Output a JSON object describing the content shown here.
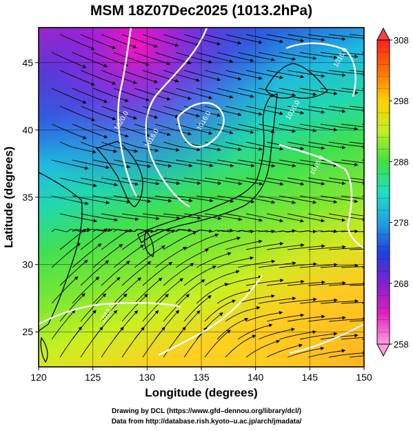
{
  "figure": {
    "title": "MSM 18Z07Dec2025 (1013.2hPa)",
    "xlabel": "Longitude (degrees)",
    "ylabel": "Latitude  (degrees)",
    "credits": [
      "Drawing by DCL (https://www.gfd–dennou.org/library/dcl/)",
      "Data from http://database.rish.kyoto–u.ac.jp/arch/jmadata/"
    ]
  },
  "map": {
    "lon_range": [
      120,
      150
    ],
    "lat_range": [
      22.4,
      47.6
    ],
    "x_ticks": [
      "120",
      "125",
      "130",
      "135",
      "140",
      "145",
      "150"
    ],
    "y_ticks": [
      "25",
      "30",
      "35",
      "40",
      "45"
    ],
    "grid": true
  },
  "colorbar": {
    "min": 258,
    "max": 308,
    "tick_labels": [
      "308",
      "298",
      "288",
      "278",
      "268",
      "258"
    ],
    "colors": [
      "#ff9fe0",
      "#e020c0",
      "#8020d0",
      "#2040e0",
      "#20a0e0",
      "#20e0c0",
      "#40e040",
      "#c0f020",
      "#ffd000",
      "#ff7000",
      "#ff2020"
    ]
  },
  "isobars": [
    {
      "label": "1020.0",
      "lon": 127.8,
      "lat": 40.6
    },
    {
      "label": "1016.0",
      "lon": 130.6,
      "lat": 39.3
    },
    {
      "label": "1016.0",
      "lon": 135.4,
      "lat": 40.6
    },
    {
      "label": "1016.0",
      "lon": 143.6,
      "lat": 41.4
    },
    {
      "label": "1016.0",
      "lon": 145.8,
      "lat": 37.3
    },
    {
      "label": "1016.0",
      "lon": 148.0,
      "lat": 45.3
    },
    {
      "label": "1012.0",
      "lon": 126.5,
      "lat": 26.3
    }
  ]
}
